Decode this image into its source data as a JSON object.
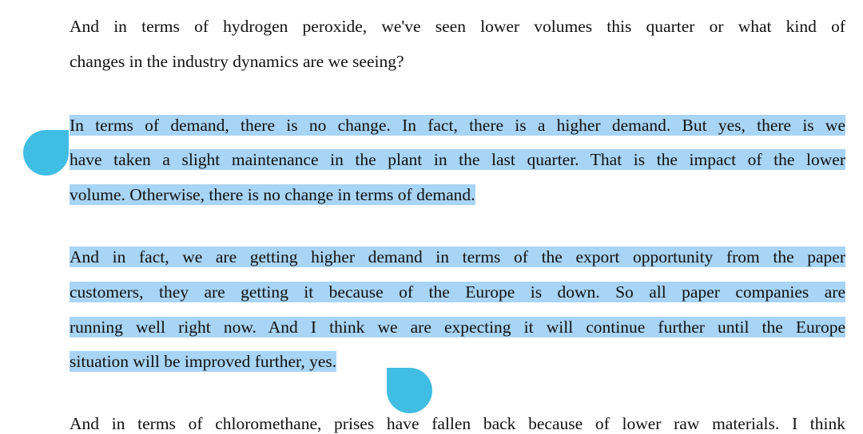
{
  "paragraphs": [
    {
      "selected": false,
      "lines": [
        "And in terms of hydrogen peroxide, we've seen lower volumes this quarter or what kind of",
        "changes in the industry dynamics are we seeing?"
      ]
    },
    {
      "selected": true,
      "lines": [
        "In terms of demand, there is no change. In fact, there is a higher demand. But yes, there is we",
        "have taken a slight maintenance in the plant in the last quarter. That is the impact of the lower",
        "volume. Otherwise, there is no change in terms of demand."
      ]
    },
    {
      "selected": true,
      "lines": [
        "And in fact, we are getting higher demand in terms of the export opportunity from the paper",
        "customers, they are getting it because of the Europe is down. So all paper companies are",
        "running well right now. And I think we are expecting it will continue further until the Europe",
        "situation will be improved further, yes."
      ]
    },
    {
      "selected": false,
      "lines": [
        "And in terms of chloromethane, prises have fallen back because of lower raw materials. I think"
      ]
    }
  ],
  "colors": {
    "selection": "#a8d4f5",
    "handle": "#40bde3"
  }
}
